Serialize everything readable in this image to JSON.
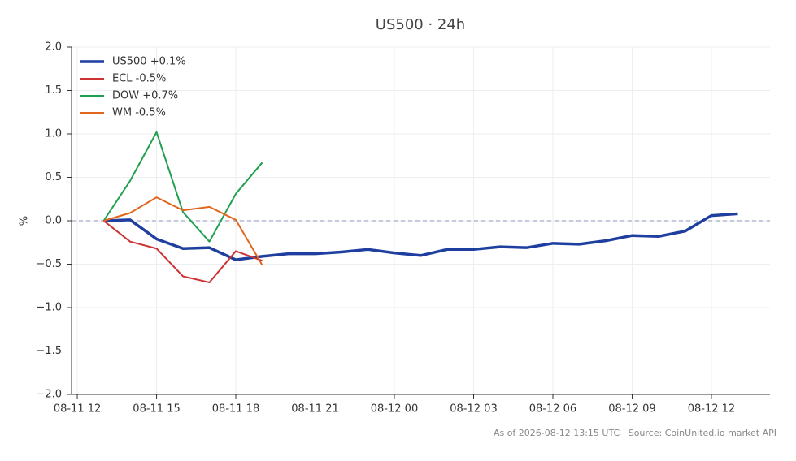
{
  "chart_data": {
    "type": "line",
    "title": "US500 · 24h",
    "y_label": "%",
    "footer": "As of 2026-08-12 13:15 UTC · Source: CoinUnited.io market API",
    "x": [
      "08-11 13",
      "08-11 14",
      "08-11 15",
      "08-11 16",
      "08-11 17",
      "08-11 18",
      "08-11 19",
      "08-11 20",
      "08-11 21",
      "08-11 22",
      "08-11 23",
      "08-12 00",
      "08-12 01",
      "08-12 02",
      "08-12 03",
      "08-12 04",
      "08-12 05",
      "08-12 06",
      "08-12 07",
      "08-12 08",
      "08-12 09",
      "08-12 10",
      "08-12 11",
      "08-12 12",
      "08-12 13"
    ],
    "series": [
      {
        "name": "US500 +0.1%",
        "color": "#1f3fa0",
        "width": 3.5,
        "values": [
          0.0,
          0.01,
          -0.21,
          -0.32,
          -0.31,
          -0.45,
          -0.41,
          -0.38,
          -0.38,
          -0.36,
          -0.33,
          -0.37,
          -0.4,
          -0.33,
          -0.33,
          -0.3,
          -0.31,
          -0.26,
          -0.27,
          -0.23,
          -0.17,
          -0.18,
          -0.12,
          0.06,
          0.08
        ]
      },
      {
        "name": "ECL -0.5%",
        "color": "#cc3333",
        "width": 2,
        "values": [
          0,
          -0.24,
          -0.32,
          -0.64,
          -0.71,
          -0.35,
          -0.46,
          null,
          null,
          null,
          null,
          null,
          null,
          null,
          null,
          null,
          null,
          null,
          null,
          null,
          null,
          null,
          null,
          null,
          null
        ]
      },
      {
        "name": "DOW +0.7%",
        "color": "#22a050",
        "width": 2,
        "values": [
          0,
          0.46,
          1.02,
          0.1,
          -0.24,
          0.31,
          0.67,
          null,
          null,
          null,
          null,
          null,
          null,
          null,
          null,
          null,
          null,
          null,
          null,
          null,
          null,
          null,
          null,
          null,
          null
        ]
      },
      {
        "name": "WM -0.5%",
        "color": "#e0661e",
        "width": 2,
        "values": [
          0,
          0.09,
          0.27,
          0.12,
          0.16,
          0.01,
          -0.51,
          null,
          null,
          null,
          null,
          null,
          null,
          null,
          null,
          null,
          null,
          null,
          null,
          null,
          null,
          null,
          null,
          null,
          null
        ]
      }
    ],
    "xlim": [
      "08-11 11:47",
      "08-12 14:13"
    ],
    "xticks": [
      "08-11 12",
      "08-11 15",
      "08-11 18",
      "08-11 21",
      "08-12 00",
      "08-12 03",
      "08-12 06",
      "08-12 09",
      "08-12 12"
    ],
    "ylim": [
      -2,
      2
    ],
    "yticks": [
      {
        "value": -2,
        "label": "−2.0"
      },
      {
        "value": -1.5,
        "label": "−1.5"
      },
      {
        "value": -1,
        "label": "−1.0"
      },
      {
        "value": -0.5,
        "label": "−0.5"
      },
      {
        "value": 0,
        "label": "0.0"
      },
      {
        "value": 0.5,
        "label": "0.5"
      },
      {
        "value": 1,
        "label": "1.0"
      },
      {
        "value": 1.5,
        "label": "1.5"
      },
      {
        "value": 2,
        "label": "2.0"
      }
    ],
    "grid": true,
    "zero_line": true,
    "legend": "upper-left"
  }
}
